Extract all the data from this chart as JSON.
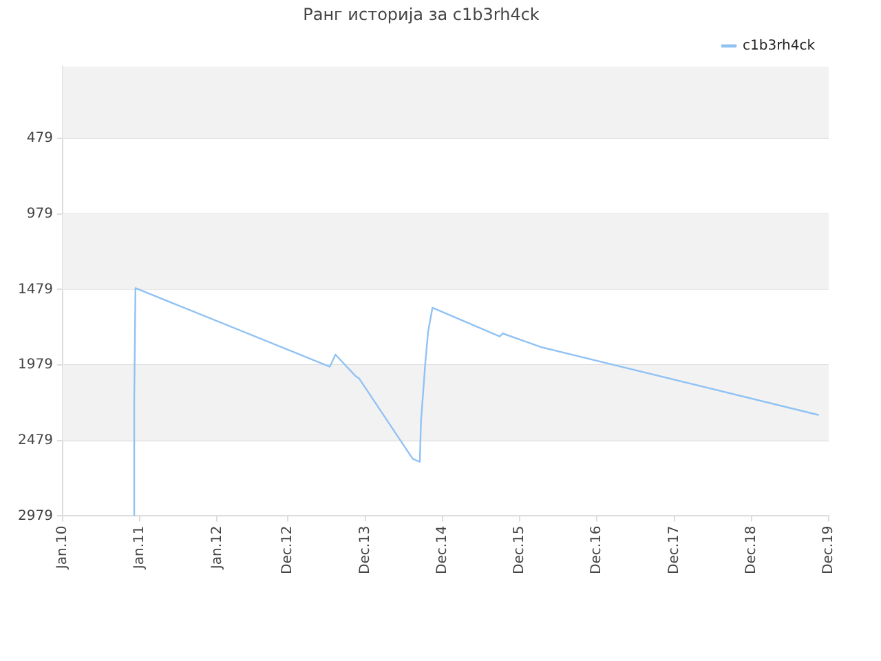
{
  "chart_data": {
    "type": "line",
    "title": "Ранг историја за c1b3rh4ck",
    "xlim": [
      "2010-01",
      "2019-12"
    ],
    "xticks": [
      {
        "value": "2010-01",
        "label": "Jan.10"
      },
      {
        "value": "2011-01",
        "label": "Jan.11"
      },
      {
        "value": "2012-01",
        "label": "Jan.12"
      },
      {
        "value": "2012-12",
        "label": "Dec.12"
      },
      {
        "value": "2013-12",
        "label": "Dec.13"
      },
      {
        "value": "2014-12",
        "label": "Dec.14"
      },
      {
        "value": "2015-12",
        "label": "Dec.15"
      },
      {
        "value": "2016-12",
        "label": "Dec.16"
      },
      {
        "value": "2017-12",
        "label": "Dec.17"
      },
      {
        "value": "2018-12",
        "label": "Dec.18"
      },
      {
        "value": "2019-12",
        "label": "Dec.19"
      }
    ],
    "ylim": [
      2979,
      4
    ],
    "yticks": [
      479,
      979,
      1479,
      1979,
      2479,
      2979
    ],
    "series": [
      {
        "name": "c1b3rh4ck",
        "color": "#90c2f4",
        "x": [
          "2010-12-05",
          "2010-12-05",
          "2010-12-11",
          "2013-06-17",
          "2013-07-13",
          "2013-10-15",
          "2013-11-04",
          "2014-07-13",
          "2014-08-16",
          "2014-08-22",
          "2014-09-12",
          "2014-09-25",
          "2014-10-15",
          "2015-08-29",
          "2015-09-12",
          "2016-03-09",
          "2019-10-15"
        ],
        "values": [
          2979,
          2220,
          1470,
          1990,
          1910,
          2050,
          2070,
          2600,
          2620,
          2350,
          1960,
          1760,
          1600,
          1790,
          1770,
          1860,
          2310
        ]
      }
    ],
    "grid": true,
    "legend": "top right",
    "marker": "none"
  }
}
